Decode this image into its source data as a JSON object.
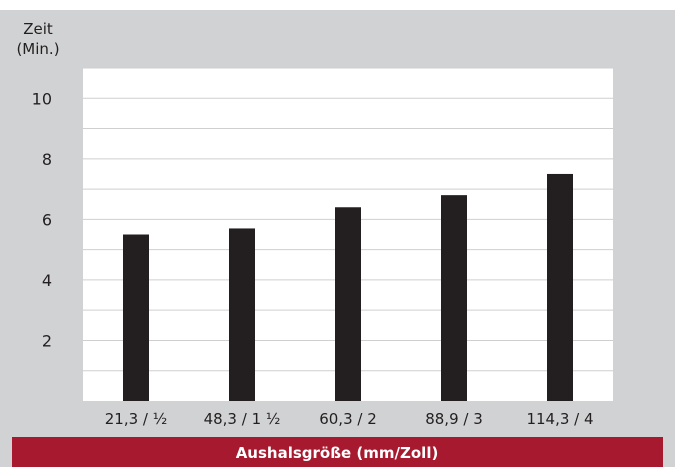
{
  "chart_data": {
    "type": "bar",
    "ylabel_line1": "Zeit",
    "ylabel_line2": "(Min.)",
    "xlabel": "Aushalsgröße (mm/Zoll)",
    "categories": [
      "21,3 / ½",
      "48,3 / 1 ½",
      "60,3 / 2",
      "88,9 / 3",
      "114,3 / 4"
    ],
    "values": [
      5.5,
      5.7,
      6.4,
      6.8,
      7.5
    ],
    "yticks": [
      2,
      4,
      6,
      8,
      10
    ],
    "ylim": [
      0,
      11
    ],
    "grid": true,
    "colors": {
      "background": "#d1d2d4",
      "plot": "#ffffff",
      "bar": "#231f20",
      "grid": "#cfcfcf",
      "banner": "#a6192e",
      "banner_text": "#ffffff",
      "text": "#231f20"
    }
  }
}
